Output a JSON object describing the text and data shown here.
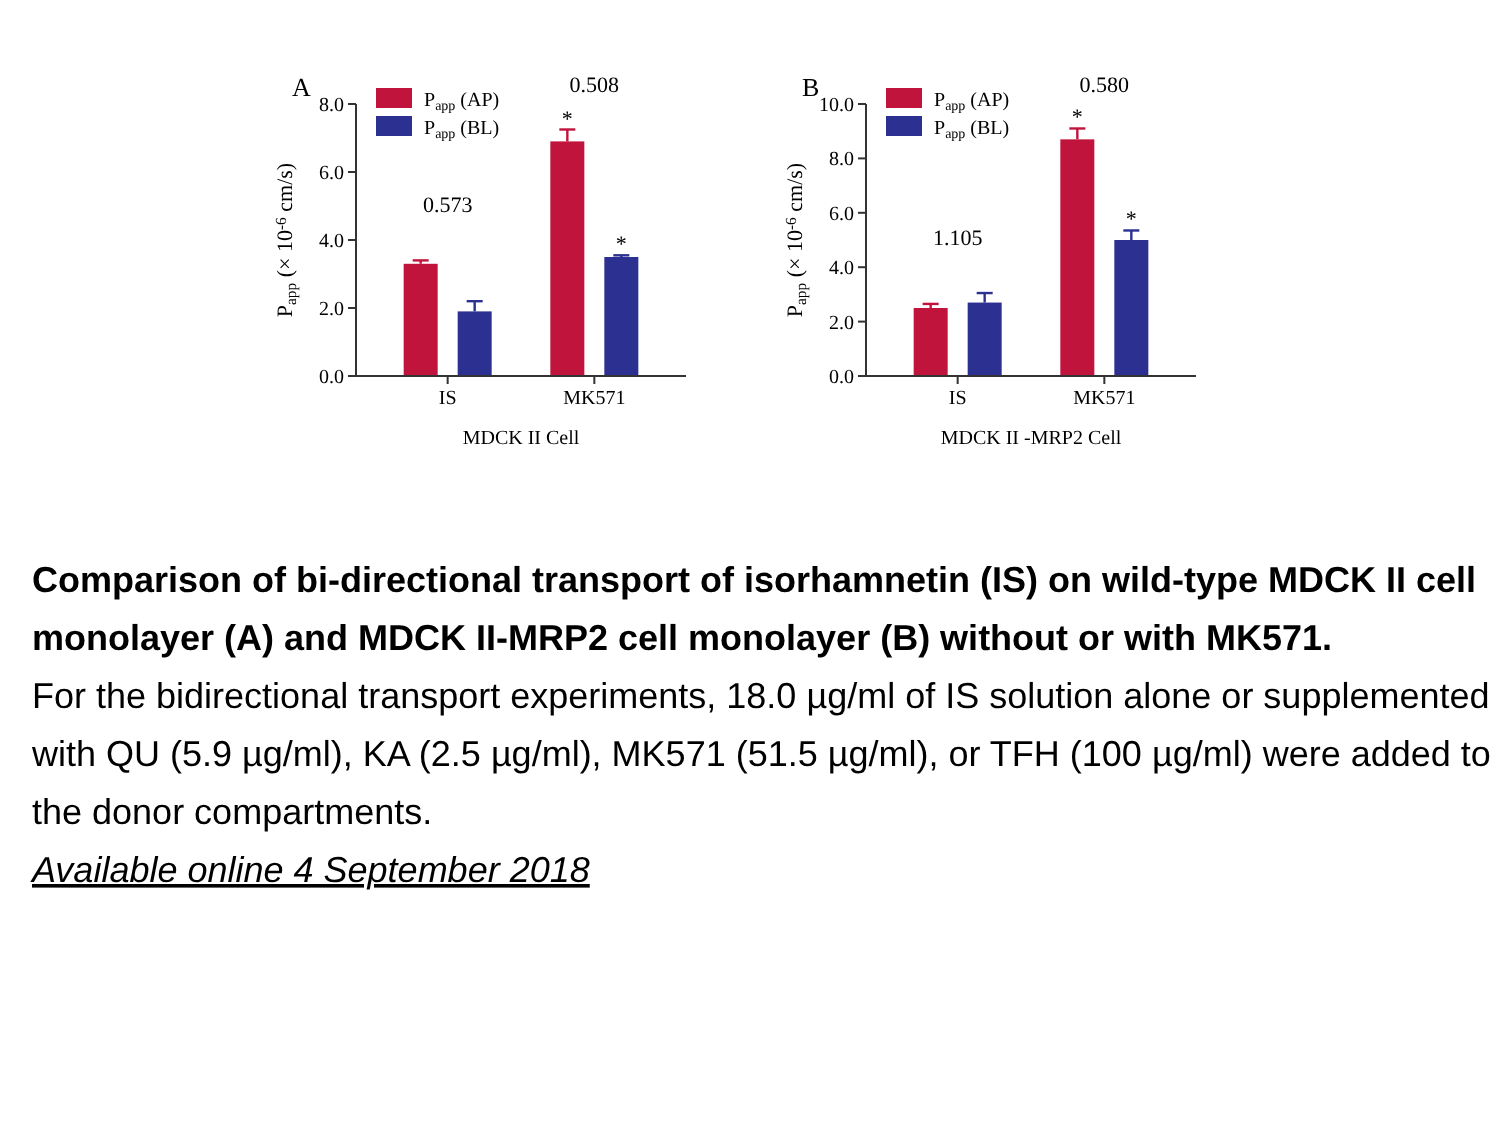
{
  "chart_data": [
    {
      "type": "bar",
      "title": "A",
      "xlabel": "MDCK II  Cell",
      "ylabel": "P$_{app}$ (× 10$^{-6}$ cm/s)",
      "categories": [
        "IS",
        "MK571"
      ],
      "series": [
        {
          "name": "P$_{app}$ (AP)",
          "color": "#c0143c",
          "values": [
            3.3,
            6.9
          ],
          "errors": [
            0.1,
            0.35
          ],
          "value_labels": [
            null,
            "*"
          ]
        },
        {
          "name": "P$_{app}$ (BL)",
          "color": "#2b3091",
          "values": [
            1.9,
            3.5
          ],
          "errors": [
            0.3,
            0.05
          ],
          "value_labels": [
            null,
            "*"
          ]
        }
      ],
      "ylim": [
        0,
        8
      ],
      "yticks": [
        {
          "value": 0,
          "label": "0.0"
        },
        {
          "value": 2,
          "label": "2.0"
        },
        {
          "value": 4,
          "label": "4.0"
        },
        {
          "value": 6,
          "label": "6.0"
        },
        {
          "value": 8,
          "label": "8.0"
        }
      ],
      "annotations": [
        "0.573",
        "0.508"
      ],
      "legend": "top left",
      "grid": false
    },
    {
      "type": "bar",
      "title": "B",
      "xlabel": "MDCK II -MRP2  Cell",
      "ylabel": "P$_{app}$ (× 10$^{-6}$ cm/s)",
      "categories": [
        "IS",
        "MK571"
      ],
      "series": [
        {
          "name": "P$_{app}$ (AP)",
          "color": "#c0143c",
          "values": [
            2.5,
            8.7
          ],
          "errors": [
            0.15,
            0.4
          ],
          "value_labels": [
            null,
            "*"
          ]
        },
        {
          "name": "P$_{app}$ (BL)",
          "color": "#2b3091",
          "values": [
            2.7,
            5.0
          ],
          "errors": [
            0.35,
            0.35
          ],
          "value_labels": [
            null,
            "*"
          ]
        }
      ],
      "ylim": [
        0,
        10
      ],
      "yticks": [
        {
          "value": 0,
          "label": "0.0"
        },
        {
          "value": 2,
          "label": "2.0"
        },
        {
          "value": 4,
          "label": "4.0"
        },
        {
          "value": 6,
          "label": "6.0"
        },
        {
          "value": 8,
          "label": "8.0"
        },
        {
          "value": 10,
          "label": "10.0"
        }
      ],
      "annotations": [
        "1.105",
        "0.580"
      ],
      "legend": "top left",
      "grid": false
    },
    {
      "type": "other",
      "title": "Comparison of bi-directional transport of isorhamnetin (IS) on wild-type MDCK II cell monolayer (A) and MDCK II-MRP2 cell monolayer (B) without or with MK571.",
      "annotations": [
        "For the bidirectional transport experiments, 18.0 µg/ml of IS solution alone or supplemented with QU (5.9 µg/ml), KA (2.5 µg/ml), MK571 (51.5 µg/ml), or TFH (100 µg/ml) were added to the donor compartments.",
        "Available online 4 September 2018"
      ]
    }
  ]
}
